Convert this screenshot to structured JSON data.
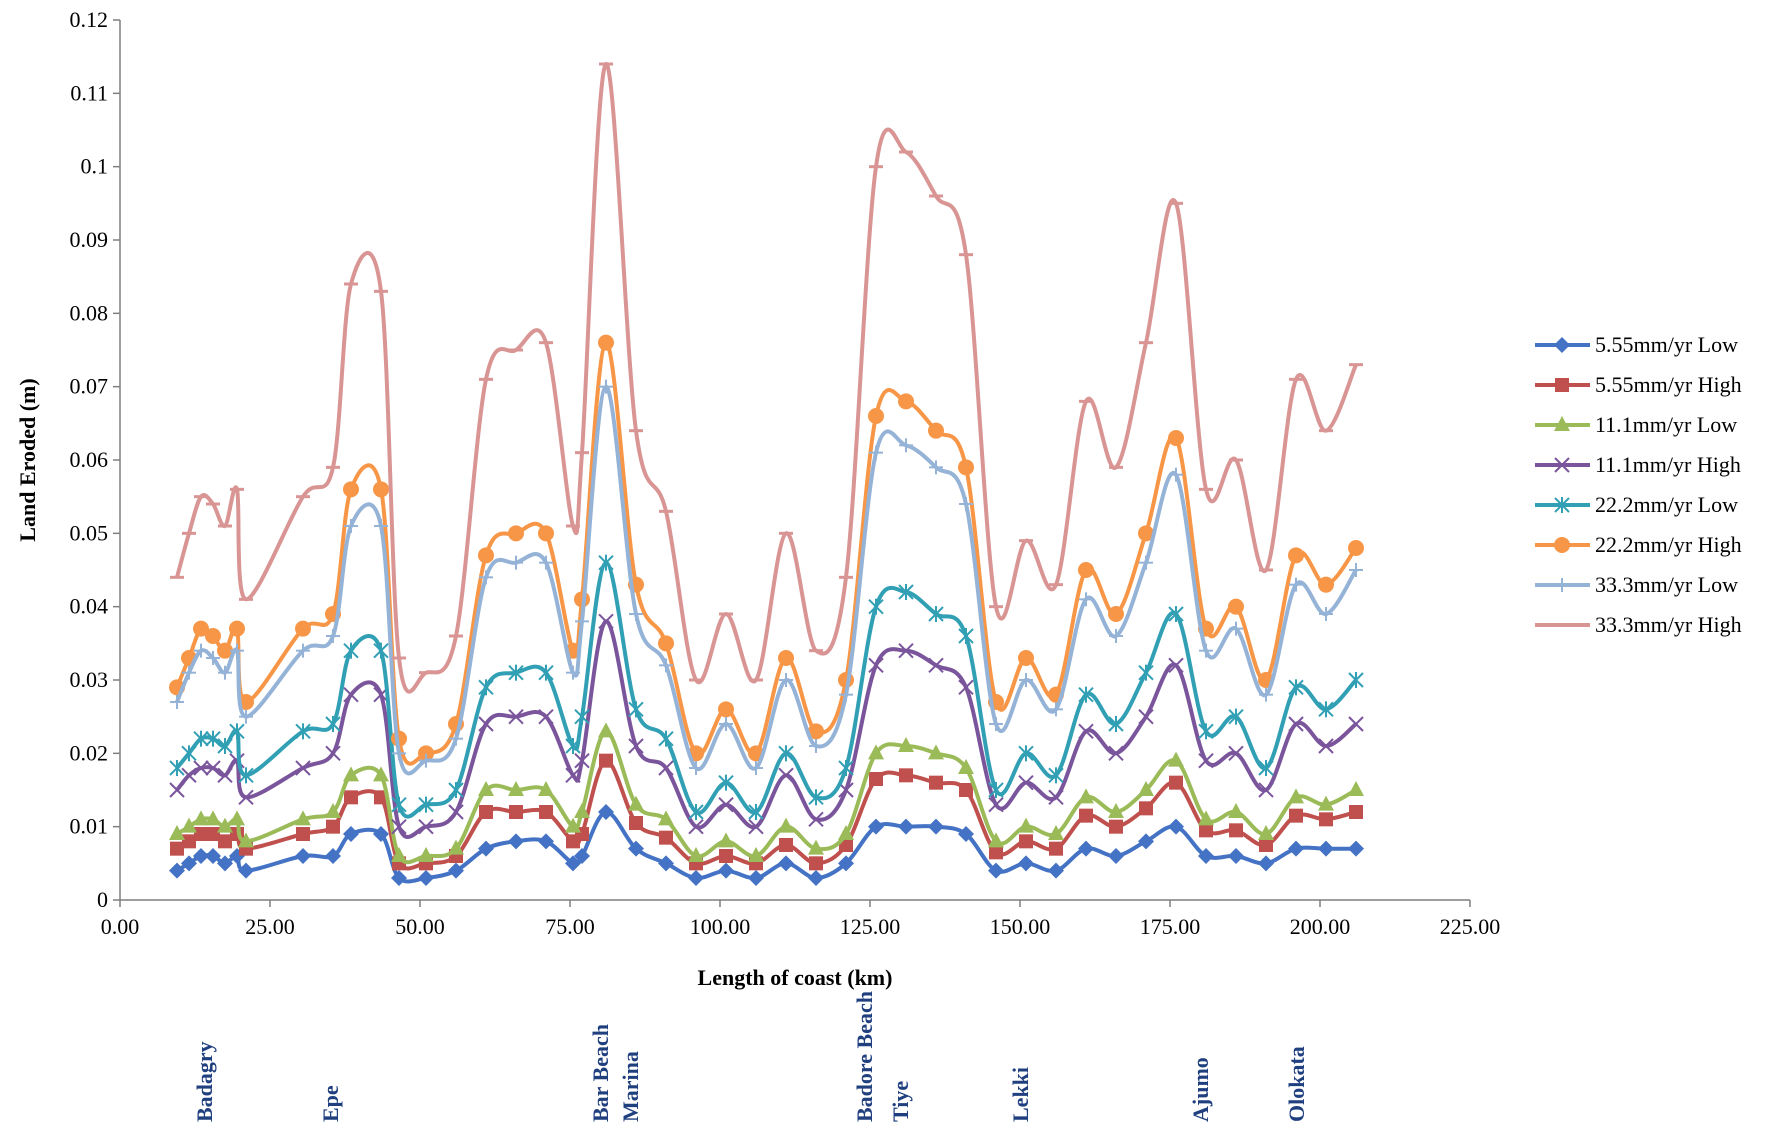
{
  "chart_data": {
    "type": "line",
    "title": "",
    "xlabel": "Length of coast (km)",
    "ylabel": "Land Eroded (m)",
    "xlim": [
      0,
      225
    ],
    "ylim": [
      0,
      0.12
    ],
    "x_ticks": [
      "0.00",
      "25.00",
      "50.00",
      "75.00",
      "100.00",
      "125.00",
      "150.00",
      "175.00",
      "200.00",
      "225.00"
    ],
    "y_ticks": [
      "0",
      "0.01",
      "0.02",
      "0.03",
      "0.04",
      "0.05",
      "0.06",
      "0.07",
      "0.08",
      "0.09",
      "0.1",
      "0.11",
      "0.12"
    ],
    "grid": false,
    "legend_position": "right",
    "x": [
      9.5,
      11.5,
      13.5,
      15.5,
      17.5,
      19.5,
      21,
      30.5,
      35.5,
      38.5,
      43.5,
      46.5,
      51,
      56,
      61,
      66,
      71,
      75.5,
      77,
      81,
      86,
      91,
      96,
      101,
      106,
      111,
      116,
      121,
      126,
      131,
      136,
      141,
      146,
      151,
      156,
      161,
      166,
      171,
      176,
      181,
      186,
      191,
      196,
      201,
      206
    ],
    "series": [
      {
        "name": "5.55mm/yr Low",
        "color": "#4472c4",
        "marker": "diamond",
        "values": [
          0.004,
          0.005,
          0.006,
          0.006,
          0.005,
          0.006,
          0.004,
          0.006,
          0.006,
          0.009,
          0.009,
          0.003,
          0.003,
          0.004,
          0.007,
          0.008,
          0.008,
          0.005,
          0.006,
          0.012,
          0.007,
          0.005,
          0.003,
          0.004,
          0.003,
          0.005,
          0.003,
          0.005,
          0.01,
          0.01,
          0.01,
          0.009,
          0.004,
          0.005,
          0.004,
          0.007,
          0.006,
          0.008,
          0.01,
          0.006,
          0.006,
          0.005,
          0.007,
          0.007,
          0.007
        ]
      },
      {
        "name": "5.55mm/yr High",
        "color": "#c0504d",
        "marker": "square",
        "values": [
          0.007,
          0.008,
          0.009,
          0.009,
          0.008,
          0.009,
          0.007,
          0.009,
          0.01,
          0.014,
          0.014,
          0.005,
          0.005,
          0.006,
          0.012,
          0.012,
          0.012,
          0.008,
          0.009,
          0.019,
          0.0105,
          0.0085,
          0.005,
          0.006,
          0.005,
          0.0075,
          0.005,
          0.0075,
          0.0165,
          0.017,
          0.016,
          0.015,
          0.0065,
          0.008,
          0.007,
          0.0115,
          0.01,
          0.0125,
          0.016,
          0.0095,
          0.0095,
          0.0075,
          0.0115,
          0.011,
          0.012
        ]
      },
      {
        "name": "11.1mm/yr Low",
        "color": "#9bbb59",
        "marker": "triangle",
        "values": [
          0.009,
          0.01,
          0.011,
          0.011,
          0.01,
          0.011,
          0.008,
          0.011,
          0.012,
          0.017,
          0.017,
          0.006,
          0.006,
          0.007,
          0.015,
          0.015,
          0.015,
          0.01,
          0.012,
          0.023,
          0.013,
          0.011,
          0.006,
          0.008,
          0.006,
          0.01,
          0.007,
          0.009,
          0.02,
          0.021,
          0.02,
          0.018,
          0.008,
          0.01,
          0.009,
          0.014,
          0.012,
          0.015,
          0.019,
          0.011,
          0.012,
          0.009,
          0.014,
          0.013,
          0.015
        ]
      },
      {
        "name": "11.1mm/yr High",
        "color": "#7a559c",
        "marker": "x",
        "values": [
          0.015,
          0.017,
          0.018,
          0.018,
          0.017,
          0.019,
          0.014,
          0.018,
          0.02,
          0.028,
          0.028,
          0.01,
          0.01,
          0.012,
          0.024,
          0.025,
          0.025,
          0.017,
          0.019,
          0.038,
          0.021,
          0.018,
          0.01,
          0.013,
          0.01,
          0.017,
          0.011,
          0.015,
          0.032,
          0.034,
          0.032,
          0.029,
          0.013,
          0.016,
          0.014,
          0.023,
          0.02,
          0.025,
          0.032,
          0.019,
          0.02,
          0.015,
          0.024,
          0.021,
          0.024
        ]
      },
      {
        "name": "22.2mm/yr Low",
        "color": "#31a0b5",
        "marker": "asterisk",
        "values": [
          0.018,
          0.02,
          0.022,
          0.022,
          0.021,
          0.023,
          0.017,
          0.023,
          0.024,
          0.034,
          0.034,
          0.013,
          0.013,
          0.015,
          0.029,
          0.031,
          0.031,
          0.021,
          0.025,
          0.046,
          0.026,
          0.022,
          0.012,
          0.016,
          0.012,
          0.02,
          0.014,
          0.018,
          0.04,
          0.042,
          0.039,
          0.036,
          0.015,
          0.02,
          0.017,
          0.028,
          0.024,
          0.031,
          0.039,
          0.023,
          0.025,
          0.018,
          0.029,
          0.026,
          0.03
        ]
      },
      {
        "name": "22.2mm/yr High",
        "color": "#f79646",
        "marker": "circle",
        "values": [
          0.029,
          0.033,
          0.037,
          0.036,
          0.034,
          0.037,
          0.027,
          0.037,
          0.039,
          0.056,
          0.056,
          0.022,
          0.02,
          0.024,
          0.047,
          0.05,
          0.05,
          0.034,
          0.041,
          0.076,
          0.043,
          0.035,
          0.02,
          0.026,
          0.02,
          0.033,
          0.023,
          0.03,
          0.066,
          0.068,
          0.064,
          0.059,
          0.027,
          0.033,
          0.028,
          0.045,
          0.039,
          0.05,
          0.063,
          0.037,
          0.04,
          0.03,
          0.047,
          0.043,
          0.048
        ]
      },
      {
        "name": "33.3mm/yr Low",
        "color": "#95b3d7",
        "marker": "plus",
        "values": [
          0.027,
          0.031,
          0.034,
          0.033,
          0.031,
          0.034,
          0.025,
          0.034,
          0.036,
          0.051,
          0.051,
          0.02,
          0.019,
          0.022,
          0.044,
          0.046,
          0.046,
          0.031,
          0.038,
          0.07,
          0.039,
          0.032,
          0.018,
          0.024,
          0.018,
          0.03,
          0.021,
          0.028,
          0.061,
          0.062,
          0.059,
          0.054,
          0.024,
          0.03,
          0.026,
          0.041,
          0.036,
          0.046,
          0.058,
          0.034,
          0.037,
          0.028,
          0.043,
          0.039,
          0.045
        ]
      },
      {
        "name": "33.3mm/yr High",
        "color": "#d99594",
        "marker": "dash",
        "values": [
          0.044,
          0.05,
          0.055,
          0.054,
          0.051,
          0.056,
          0.041,
          0.055,
          0.059,
          0.084,
          0.083,
          0.033,
          0.031,
          0.036,
          0.071,
          0.075,
          0.076,
          0.051,
          0.061,
          0.114,
          0.064,
          0.053,
          0.03,
          0.039,
          0.03,
          0.05,
          0.034,
          0.044,
          0.1,
          0.102,
          0.096,
          0.088,
          0.04,
          0.049,
          0.043,
          0.068,
          0.059,
          0.076,
          0.095,
          0.056,
          0.06,
          0.045,
          0.071,
          0.064,
          0.073
        ]
      }
    ],
    "annotations": [
      {
        "text": "Badagry",
        "x": 14
      },
      {
        "text": "Epe",
        "x": 35
      },
      {
        "text": "Bar Beach",
        "x": 80
      },
      {
        "text": "Marina",
        "x": 85
      },
      {
        "text": "Badore Beach",
        "x": 124
      },
      {
        "text": "Tiye",
        "x": 130
      },
      {
        "text": "Lekki",
        "x": 150
      },
      {
        "text": "Ajumo",
        "x": 180
      },
      {
        "text": "Olokata",
        "x": 196
      }
    ]
  }
}
